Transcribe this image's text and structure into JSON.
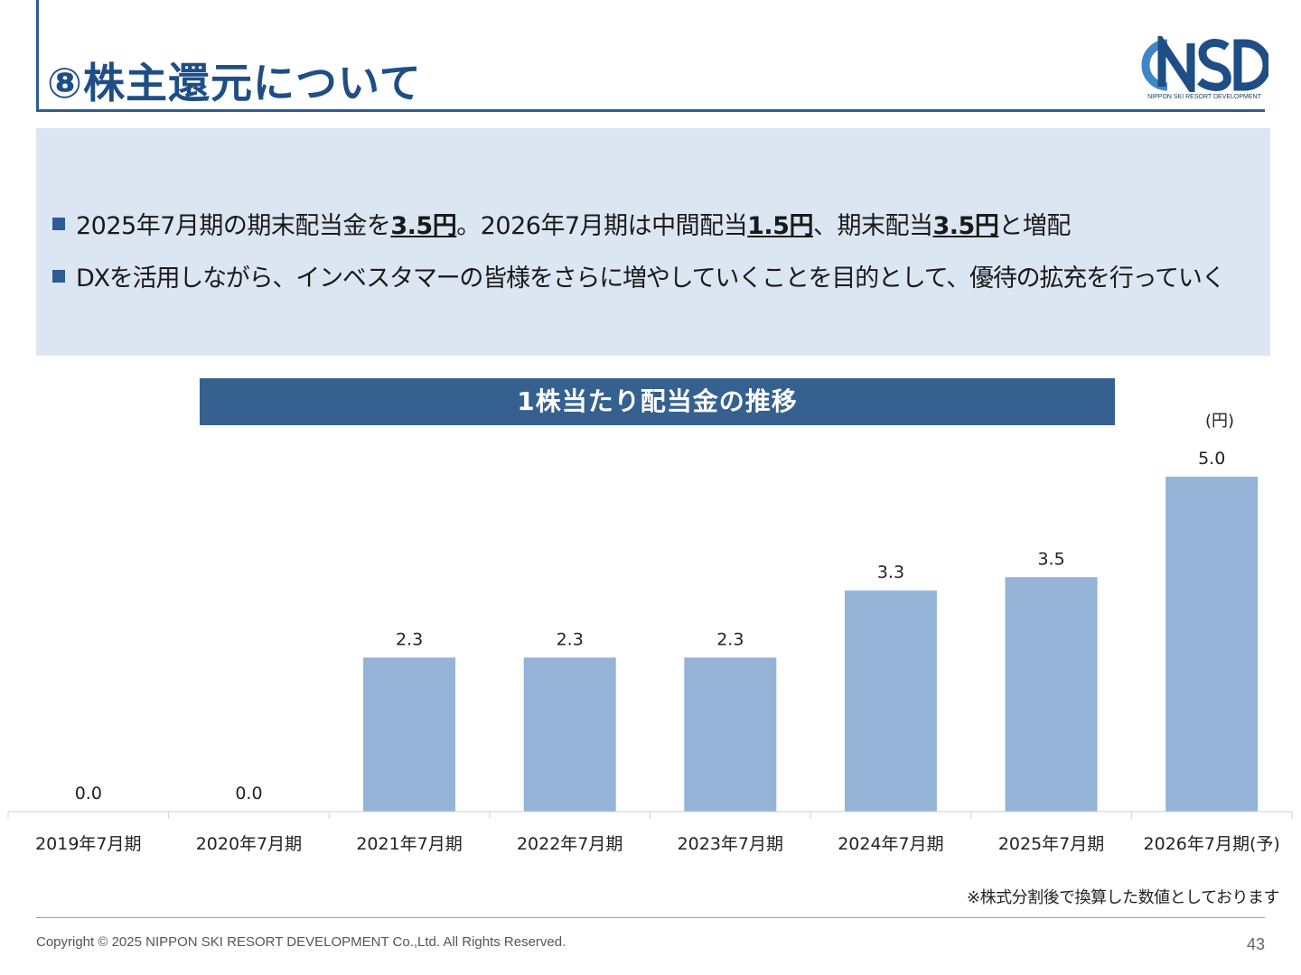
{
  "slide": {
    "title": "⑧株主還元について",
    "logo_text": "NSD",
    "logo_subtitle": "NIPPON SKI RESORT DEVELOPMENT",
    "brand_color": "#2e5c94"
  },
  "summary": {
    "bullet1": {
      "t1": "2025年7月期の期末配当金を",
      "b1": "3.5円",
      "t2": "。2026年7月期は中間配当",
      "b2": "1.5円",
      "t3": "、期末配当",
      "b3": "3.5円",
      "t4": "と増配"
    },
    "bullet2": "DXを活用しながら、インベスタマーの皆様をさらに増やしていくことを目的として、優待の拡充を行っていく"
  },
  "chart_header": "1株当たり配当金の推移",
  "unit_label": "(円)",
  "chart_data": {
    "type": "bar",
    "categories": [
      "2019年7月期",
      "2020年7月期",
      "2021年7月期",
      "2022年7月期",
      "2023年7月期",
      "2024年7月期",
      "2025年7月期",
      "2026年7月期(予)"
    ],
    "values": [
      0.0,
      0.0,
      2.3,
      2.3,
      2.3,
      3.3,
      3.5,
      5.0
    ],
    "data_labels": [
      "0.0",
      "0.0",
      "2.3",
      "2.3",
      "2.3",
      "3.3",
      "3.5",
      "5.0"
    ],
    "ylim": [
      0,
      5.0
    ],
    "bar_color": "#95b3d7",
    "grid": false
  },
  "footnote": "※株式分割後で換算した数値としております",
  "copyright": "Copyright © 2025 NIPPON SKI RESORT DEVELOPMENT Co.,Ltd. All Rights Reserved.",
  "page_number": "43"
}
